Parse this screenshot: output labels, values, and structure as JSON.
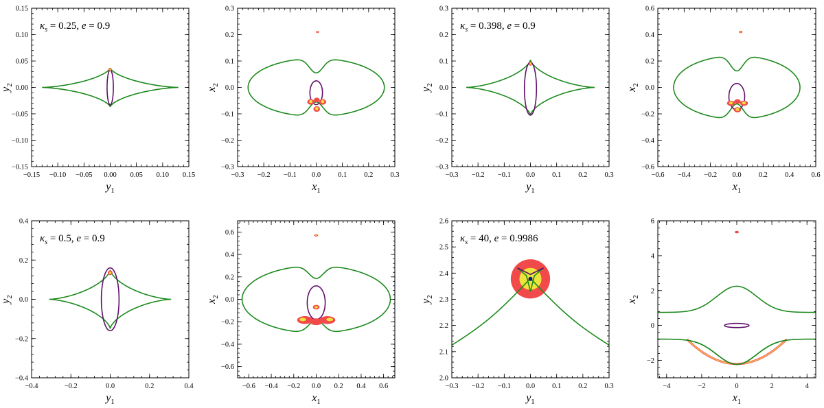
{
  "figure": {
    "panels": [
      {
        "id": "a-source",
        "xlabel": "y",
        "xsub": "1",
        "ylabel": "y",
        "ysub": "2",
        "xlim": [
          -0.15,
          0.15
        ],
        "ylim": [
          -0.15,
          0.15
        ],
        "xticks": [
          "−0.15",
          "−0.10",
          "−0.05",
          "0.00",
          "0.05",
          "0.10",
          "0.15"
        ],
        "yticks": [
          "−0.15",
          "−0.10",
          "−0.05",
          "0.00",
          "0.05",
          "0.10",
          "0.15"
        ],
        "annotation": {
          "kappa": "κ",
          "ksub": "s",
          "kval": " = 0.25, ",
          "e": "e",
          "eval": " = 0.9"
        }
      },
      {
        "id": "a-image",
        "xlabel": "x",
        "xsub": "1",
        "ylabel": "x",
        "ysub": "2",
        "xlim": [
          -0.3,
          0.3
        ],
        "ylim": [
          -0.3,
          0.3
        ],
        "xticks": [
          "−0.3",
          "−0.2",
          "−0.1",
          "0.0",
          "0.1",
          "0.2",
          "0.3"
        ],
        "yticks": [
          "−0.3",
          "−0.2",
          "−0.1",
          "0.0",
          "0.1",
          "0.2",
          "0.3"
        ]
      },
      {
        "id": "b-source",
        "xlabel": "y",
        "xsub": "1",
        "ylabel": "y",
        "ysub": "2",
        "xlim": [
          -0.3,
          0.3
        ],
        "ylim": [
          -0.3,
          0.3
        ],
        "xticks": [
          "−0.3",
          "−0.2",
          "−0.1",
          "0.0",
          "0.1",
          "0.2",
          "0.3"
        ],
        "yticks": [
          "−0.3",
          "−0.2",
          "−0.1",
          "0.0",
          "0.1",
          "0.2",
          "0.3"
        ],
        "annotation": {
          "kappa": "κ",
          "ksub": "s",
          "kval": " = 0.398, ",
          "e": "e",
          "eval": " = 0.9"
        }
      },
      {
        "id": "b-image",
        "xlabel": "x",
        "xsub": "1",
        "ylabel": "x",
        "ysub": "2",
        "xlim": [
          -0.6,
          0.6
        ],
        "ylim": [
          -0.6,
          0.6
        ],
        "xticks": [
          "−0.6",
          "−0.4",
          "−0.2",
          "0.0",
          "0.2",
          "0.4",
          "0.6"
        ],
        "yticks": [
          "−0.6",
          "−0.4",
          "−0.2",
          "0.0",
          "0.2",
          "0.4",
          "0.6"
        ]
      },
      {
        "id": "c-source",
        "xlabel": "y",
        "xsub": "1",
        "ylabel": "y",
        "ysub": "2",
        "xlim": [
          -0.4,
          0.4
        ],
        "ylim": [
          -0.4,
          0.4
        ],
        "xticks": [
          "−0.4",
          "−0.2",
          "0.0",
          "0.2",
          "0.4"
        ],
        "yticks": [
          "−0.4",
          "−0.2",
          "0.0",
          "0.2",
          "0.4"
        ],
        "annotation": {
          "kappa": "κ",
          "ksub": "s",
          "kval": " = 0.5, ",
          "e": "e",
          "eval": " = 0.9"
        }
      },
      {
        "id": "c-image",
        "xlabel": "x",
        "xsub": "1",
        "ylabel": "x",
        "ysub": "2",
        "xlim": [
          -0.7,
          0.7
        ],
        "ylim": [
          -0.7,
          0.7
        ],
        "xticks": [
          "−0.6",
          "−0.4",
          "−0.2",
          "0.0",
          "0.2",
          "0.4",
          "0.6"
        ],
        "yticks": [
          "−0.6",
          "−0.4",
          "−0.2",
          "0.0",
          "0.2",
          "0.4",
          "0.6"
        ]
      },
      {
        "id": "d-source",
        "xlabel": "y",
        "xsub": "1",
        "ylabel": "y",
        "ysub": "2",
        "xlim": [
          -0.3,
          0.3
        ],
        "ylim": [
          2.0,
          2.6
        ],
        "xticks": [
          "−0.3",
          "−0.2",
          "−0.1",
          "0.0",
          "0.1",
          "0.2",
          "0.3"
        ],
        "yticks": [
          "2.0",
          "2.1",
          "2.2",
          "2.3",
          "2.4",
          "2.5",
          "2.6"
        ],
        "annotation": {
          "kappa": "κ",
          "ksub": "s",
          "kval": " = 40, ",
          "e": "e",
          "eval": " = 0.9986"
        }
      },
      {
        "id": "d-image",
        "xlabel": "x",
        "xsub": "1",
        "ylabel": "x",
        "ysub": "2",
        "xlim": [
          -4.5,
          4.5
        ],
        "ylim": [
          -3,
          6
        ],
        "xticks": [
          "−4",
          "−2",
          "0",
          "2",
          "4"
        ],
        "yticks": [
          "−2",
          "0",
          "2",
          "4",
          "6"
        ]
      }
    ],
    "colors": {
      "caustic": "#1d8a1d",
      "critical": "#60106a",
      "source_outer": "#f24a4a",
      "source_inner": "#ece43c"
    }
  }
}
